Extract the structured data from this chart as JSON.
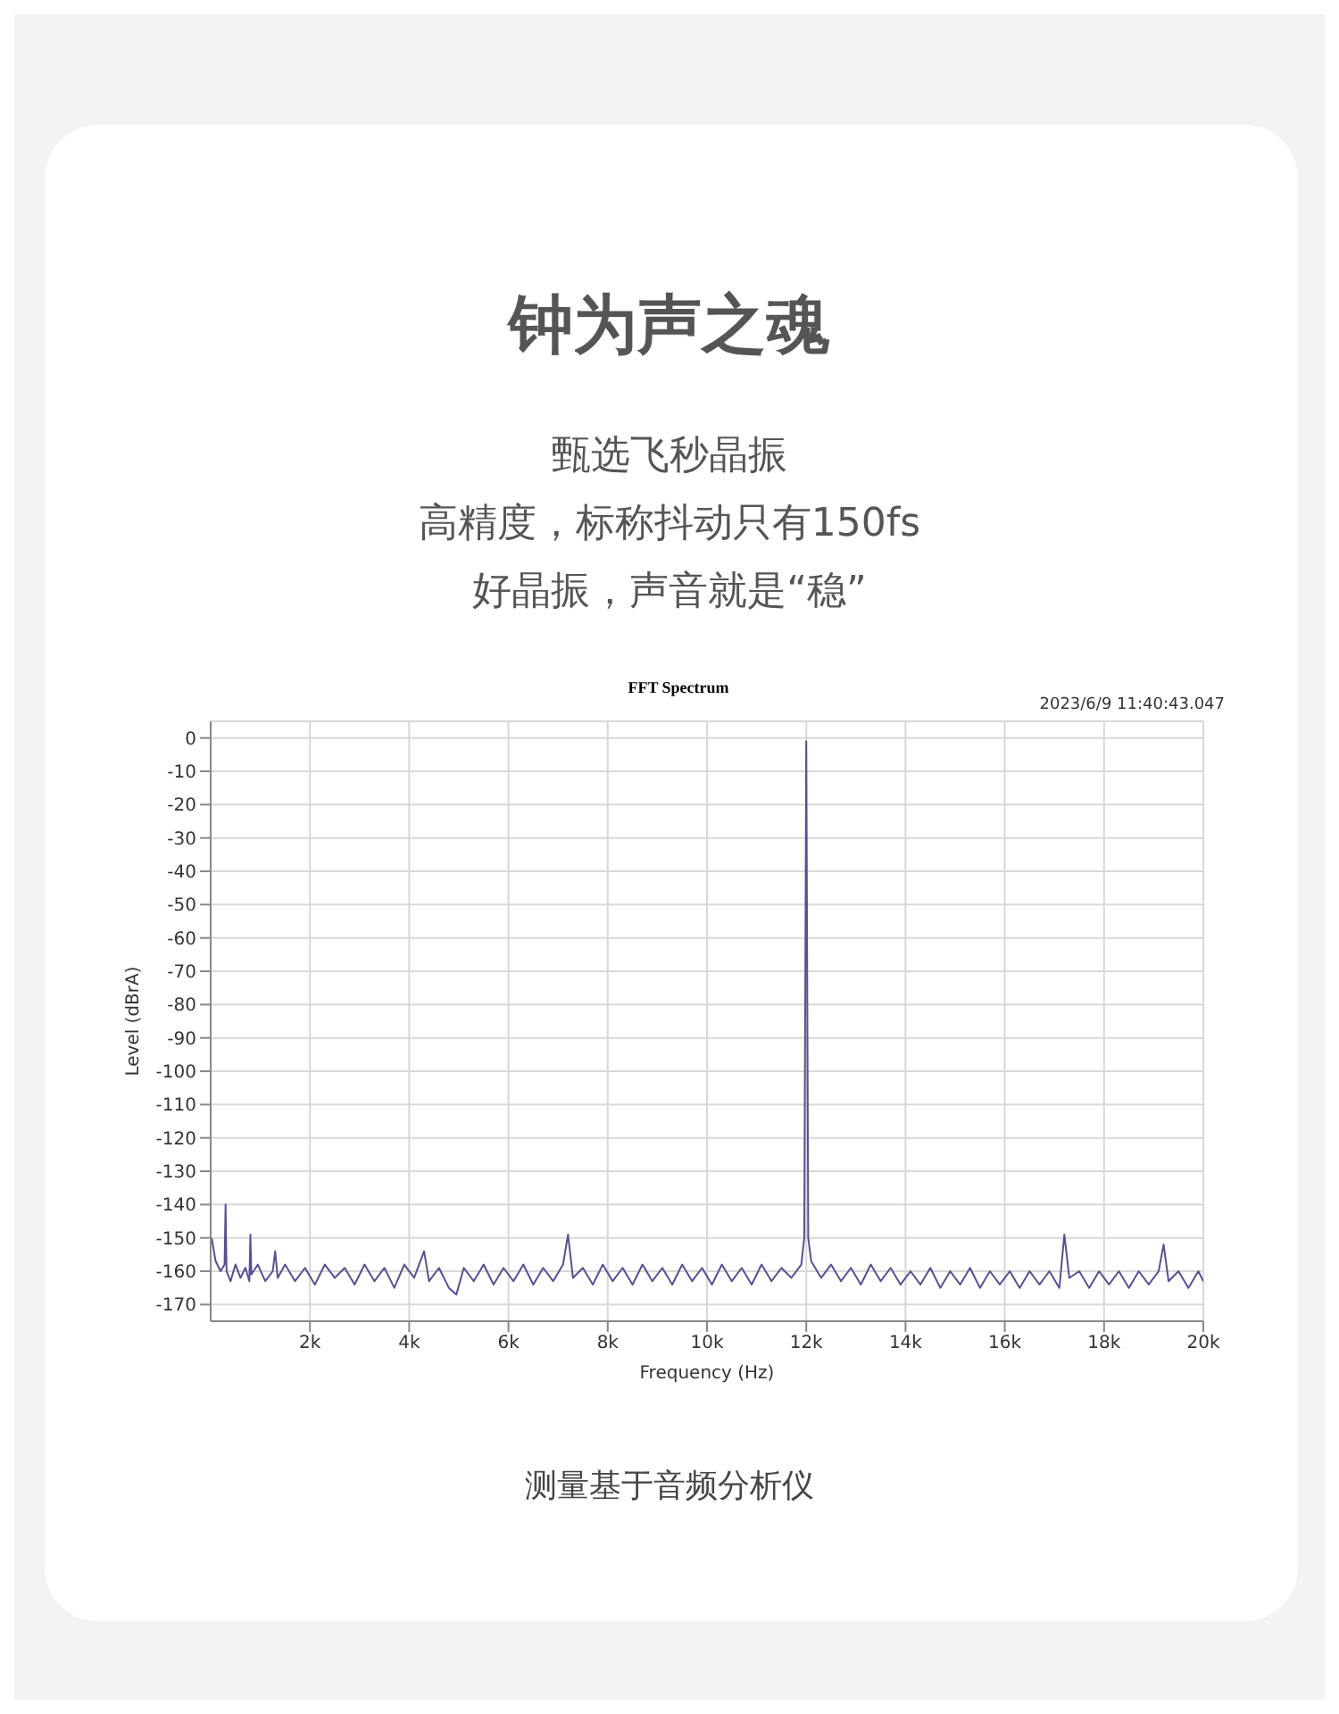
{
  "chart_data": {
    "type": "line",
    "title": "FFT Spectrum",
    "subtitle": "钟为声之魂",
    "xlabel": "Frequency (Hz)",
    "ylabel": "Level (dBrA)",
    "annotations": [
      "甄选飞秒晶振",
      "高精度，标称抖动只有150fs",
      "好晶振，声音就是“稳”",
      "2023/6/9 11:40:43.047",
      "测量基于音频分析仪"
    ],
    "x": [
      20,
      100,
      200,
      280,
      300,
      320,
      400,
      500,
      600,
      700,
      780,
      800,
      820,
      950,
      1100,
      1250,
      1300,
      1350,
      1500,
      1700,
      1900,
      2100,
      2300,
      2500,
      2700,
      2900,
      3100,
      3300,
      3500,
      3700,
      3900,
      4100,
      4300,
      4400,
      4600,
      4800,
      4950,
      5100,
      5300,
      5500,
      5700,
      5900,
      6100,
      6300,
      6500,
      6700,
      6900,
      7100,
      7200,
      7300,
      7500,
      7700,
      7900,
      8100,
      8300,
      8500,
      8700,
      8900,
      9100,
      9300,
      9500,
      9700,
      9900,
      10100,
      10300,
      10500,
      10700,
      10900,
      11100,
      11300,
      11500,
      11700,
      11900,
      11960,
      12000,
      12040,
      12100,
      12300,
      12500,
      12700,
      12900,
      13100,
      13300,
      13500,
      13700,
      13900,
      14100,
      14300,
      14500,
      14700,
      14900,
      15100,
      15300,
      15500,
      15700,
      15900,
      16100,
      16300,
      16500,
      16700,
      16900,
      17100,
      17200,
      17300,
      17500,
      17700,
      17900,
      18100,
      18300,
      18500,
      18700,
      18900,
      19100,
      19200,
      19300,
      19500,
      19700,
      19900,
      20000
    ],
    "series": [
      {
        "color": "#5b4f8f",
        "values": [
          -150,
          -157,
          -160,
          -158,
          -140,
          -160,
          -163,
          -158,
          -162,
          -159,
          -163,
          -149,
          -161,
          -158,
          -163,
          -160,
          -154,
          -162,
          -158,
          -163,
          -159,
          -164,
          -158,
          -162,
          -159,
          -164,
          -158,
          -163,
          -159,
          -165,
          -158,
          -162,
          -154,
          -163,
          -159,
          -165,
          -167,
          -159,
          -163,
          -158,
          -164,
          -159,
          -163,
          -158,
          -164,
          -159,
          -163,
          -158,
          -149,
          -162,
          -159,
          -164,
          -158,
          -163,
          -159,
          -164,
          -158,
          -163,
          -159,
          -164,
          -158,
          -163,
          -159,
          -164,
          -158,
          -163,
          -159,
          -164,
          -158,
          -163,
          -159,
          -162,
          -158,
          -150,
          -1,
          -150,
          -157,
          -162,
          -158,
          -163,
          -159,
          -164,
          -158,
          -163,
          -159,
          -164,
          -160,
          -164,
          -159,
          -165,
          -160,
          -164,
          -159,
          -165,
          -160,
          -164,
          -160,
          -165,
          -160,
          -164,
          -160,
          -165,
          -149,
          -162,
          -160,
          -165,
          -160,
          -164,
          -160,
          -165,
          -160,
          -164,
          -160,
          -152,
          -163,
          -160,
          -165,
          -160,
          -163
        ]
      }
    ],
    "xlim": [
      0,
      20000
    ],
    "xticks": [
      {
        "value": 2000,
        "label": "2k"
      },
      {
        "value": 4000,
        "label": "4k"
      },
      {
        "value": 6000,
        "label": "6k"
      },
      {
        "value": 8000,
        "label": "8k"
      },
      {
        "value": 10000,
        "label": "10k"
      },
      {
        "value": 12000,
        "label": "12k"
      },
      {
        "value": 14000,
        "label": "14k"
      },
      {
        "value": 16000,
        "label": "16k"
      },
      {
        "value": 18000,
        "label": "18k"
      },
      {
        "value": 20000,
        "label": "20k"
      }
    ],
    "ylim": [
      -175,
      5
    ],
    "yticks": [
      0,
      -10,
      -20,
      -30,
      -40,
      -50,
      -60,
      -70,
      -80,
      -90,
      -100,
      -110,
      -120,
      -130,
      -140,
      -150,
      -160,
      -170
    ],
    "grid": true,
    "legend": false,
    "marker": "none",
    "line_style": "solid"
  }
}
